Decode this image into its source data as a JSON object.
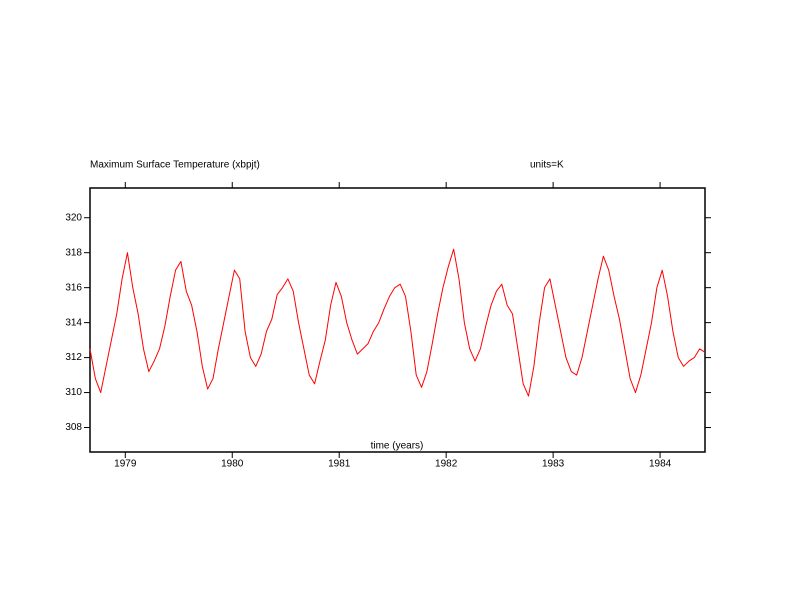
{
  "chart_data": {
    "type": "line",
    "title": "Maximum Surface Temperature (xbpjt)",
    "subtitle": "units=K",
    "xlabel": "time (years)",
    "xlim": [
      1978.67,
      1984.42
    ],
    "xticks": [
      1979,
      1980,
      1981,
      1982,
      1983,
      1984
    ],
    "ylim": [
      306.6,
      321.7
    ],
    "yticks": [
      308,
      310,
      312,
      314,
      316,
      318,
      320
    ],
    "grid": false,
    "x": [
      1978.67,
      1978.72,
      1978.77,
      1978.82,
      1978.87,
      1978.92,
      1978.97,
      1979.02,
      1979.07,
      1979.12,
      1979.17,
      1979.22,
      1979.27,
      1979.32,
      1979.37,
      1979.42,
      1979.47,
      1979.52,
      1979.57,
      1979.62,
      1979.67,
      1979.72,
      1979.77,
      1979.82,
      1979.87,
      1979.92,
      1979.97,
      1980.02,
      1980.07,
      1980.12,
      1980.17,
      1980.22,
      1980.27,
      1980.32,
      1980.37,
      1980.42,
      1980.47,
      1980.52,
      1980.57,
      1980.62,
      1980.67,
      1980.72,
      1980.77,
      1980.82,
      1980.87,
      1980.92,
      1980.97,
      1981.02,
      1981.07,
      1981.12,
      1981.17,
      1981.22,
      1981.27,
      1981.32,
      1981.37,
      1981.42,
      1981.47,
      1981.52,
      1981.57,
      1981.62,
      1981.67,
      1981.72,
      1981.77,
      1981.82,
      1981.87,
      1981.92,
      1981.97,
      1982.02,
      1982.07,
      1982.12,
      1982.17,
      1982.22,
      1982.27,
      1982.32,
      1982.37,
      1982.42,
      1982.47,
      1982.52,
      1982.57,
      1982.62,
      1982.67,
      1982.72,
      1982.77,
      1982.82,
      1982.87,
      1982.92,
      1982.97,
      1983.02,
      1983.07,
      1983.12,
      1983.17,
      1983.22,
      1983.27,
      1983.32,
      1983.37,
      1983.42,
      1983.47,
      1983.52,
      1983.57,
      1983.62,
      1983.67,
      1983.72,
      1983.77,
      1983.82,
      1983.87,
      1983.92,
      1983.97,
      1984.02,
      1984.07,
      1984.12,
      1984.17,
      1984.22,
      1984.27,
      1984.32,
      1984.37,
      1984.42
    ],
    "series": [
      {
        "color": "#ff0000",
        "values": [
          312.5,
          310.8,
          310.0,
          311.5,
          313.0,
          314.5,
          316.5,
          318.0,
          316.0,
          314.5,
          312.5,
          311.2,
          311.8,
          312.5,
          313.8,
          315.5,
          317.0,
          317.5,
          315.8,
          315.0,
          313.5,
          311.5,
          310.2,
          310.8,
          312.5,
          314.0,
          315.5,
          317.0,
          316.5,
          313.5,
          312.0,
          311.5,
          312.2,
          313.5,
          314.2,
          315.6,
          316.0,
          316.5,
          315.8,
          314.0,
          312.5,
          311.0,
          310.5,
          311.8,
          313.0,
          315.0,
          316.3,
          315.5,
          314.0,
          313.0,
          312.2,
          312.5,
          312.8,
          313.5,
          314.0,
          314.8,
          315.5,
          316.0,
          316.2,
          315.5,
          313.5,
          311.0,
          310.3,
          311.2,
          312.8,
          314.5,
          316.0,
          317.2,
          318.2,
          316.5,
          314.0,
          312.5,
          311.8,
          312.5,
          313.8,
          315.0,
          315.8,
          316.2,
          315.0,
          314.5,
          312.5,
          310.5,
          309.8,
          311.5,
          314.0,
          316.0,
          316.5,
          315.0,
          313.5,
          312.0,
          311.2,
          311.0,
          312.0,
          313.5,
          315.0,
          316.5,
          317.8,
          317.0,
          315.5,
          314.2,
          312.5,
          310.8,
          310.0,
          311.0,
          312.5,
          314.0,
          316.0,
          317.0,
          315.5,
          313.5,
          312.0,
          311.5,
          311.8,
          312.0,
          312.5,
          312.3
        ]
      }
    ]
  }
}
